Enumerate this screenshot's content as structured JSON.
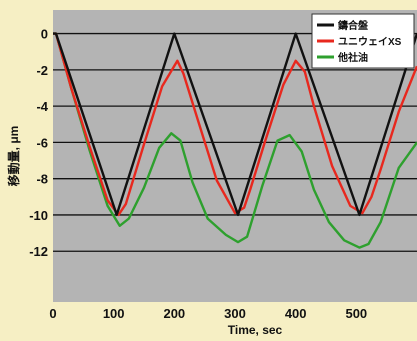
{
  "chart_data": {
    "type": "line",
    "xlabel": "Time, sec",
    "ylabel": "移動量, μm",
    "xlim": [
      0,
      600
    ],
    "ylim": [
      -14.8,
      1.3
    ],
    "x_ticks": [
      0,
      100,
      200,
      300,
      400,
      500
    ],
    "y_ticks": [
      0,
      -2,
      -4,
      -6,
      -8,
      -10,
      -12
    ],
    "grid": "horizontal",
    "legend_position": "top-right",
    "colors": {
      "plot_bg": "#b4b4b4",
      "page_bg": "#f6efc4",
      "grid": "#111111"
    },
    "series": [
      {
        "name": "鑄合盤",
        "color": "#111111",
        "x": [
          0,
          5,
          105,
          200,
          305,
          400,
          505,
          600
        ],
        "y": [
          0,
          0,
          -10,
          0,
          -10,
          0,
          -10,
          0
        ]
      },
      {
        "name": "ユニウェイXS",
        "color": "#e8281e",
        "x": [
          0,
          5,
          30,
          60,
          90,
          108,
          120,
          150,
          180,
          205,
          215,
          240,
          270,
          300,
          315,
          325,
          350,
          380,
          400,
          415,
          430,
          460,
          490,
          510,
          525,
          540,
          570,
          600
        ],
        "y": [
          0,
          0,
          -3.0,
          -6.2,
          -9.2,
          -10.0,
          -9.4,
          -6.1,
          -2.9,
          -1.5,
          -2.2,
          -4.9,
          -8.1,
          -9.9,
          -9.6,
          -8.6,
          -5.9,
          -2.8,
          -1.5,
          -2.1,
          -4.0,
          -7.3,
          -9.5,
          -9.9,
          -9.0,
          -7.5,
          -4.3,
          -1.8
        ]
      },
      {
        "name": "他社油",
        "color": "#2ea02e",
        "x": [
          0,
          5,
          30,
          60,
          90,
          110,
          125,
          150,
          175,
          195,
          210,
          230,
          255,
          285,
          305,
          320,
          345,
          370,
          390,
          410,
          430,
          455,
          480,
          505,
          520,
          540,
          570,
          600
        ],
        "y": [
          0,
          0,
          -3.0,
          -6.4,
          -9.5,
          -10.6,
          -10.2,
          -8.5,
          -6.3,
          -5.5,
          -5.9,
          -8.2,
          -10.2,
          -11.1,
          -11.5,
          -11.2,
          -8.4,
          -5.9,
          -5.6,
          -6.5,
          -8.6,
          -10.4,
          -11.4,
          -11.8,
          -11.6,
          -10.4,
          -7.4,
          -6.0
        ]
      }
    ]
  }
}
